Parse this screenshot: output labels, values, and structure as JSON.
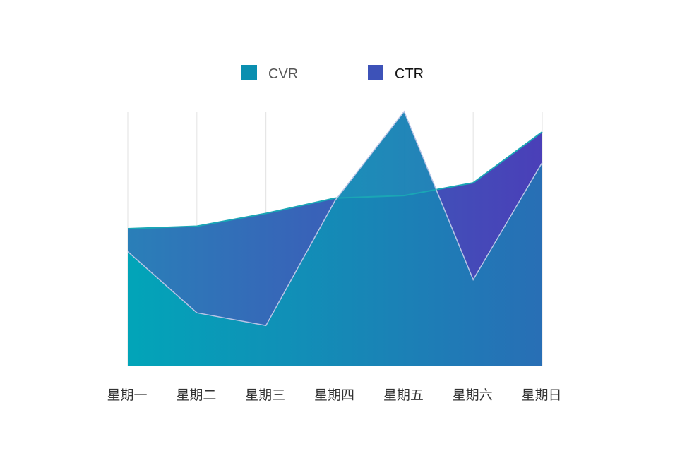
{
  "chart_data": {
    "type": "area",
    "categories": [
      "星期一",
      "星期二",
      "星期三",
      "星期四",
      "星期五",
      "星期六",
      "星期日"
    ],
    "series": [
      {
        "name": "CVR",
        "values": [
          45,
          21,
          16,
          65,
          100,
          34,
          80
        ],
        "color": "#0a8fb0"
      },
      {
        "name": "CTR",
        "values": [
          54,
          55,
          60,
          66,
          67,
          72,
          92
        ],
        "color": "#3d52b8"
      }
    ],
    "ylim": [
      0,
      100
    ],
    "grid": {
      "vertical": true,
      "horizontal": false
    },
    "legend": {
      "position": "top-center"
    },
    "colors": {
      "cvr_fill_left": "#00a6b8",
      "cvr_fill_right": "#2770b5",
      "ctr_fill_left": "#2a7fb8",
      "ctr_fill_right": "#4a3fb8",
      "grid": "#e2e2e2",
      "ctr_line": "#1aa6b5",
      "cvr_line": "#b8c4e6",
      "tick_label": "#333333",
      "legend_cvr_text": "#555555",
      "legend_ctr_text": "#111111"
    }
  }
}
